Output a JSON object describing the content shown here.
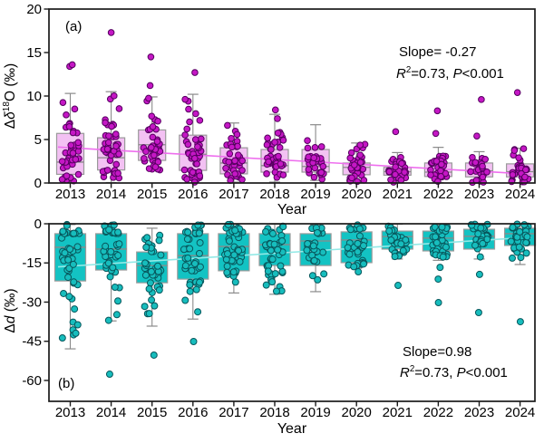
{
  "figure": {
    "description": "Two-panel box-and-scatter time series of isotope differences by year"
  },
  "chart_data": [
    {
      "panel": "a",
      "type": "box",
      "panel_label": "(a)",
      "xlabel": "Year",
      "ylabel_parts": [
        {
          "t": "Δ"
        },
        {
          "t": "δ",
          "style": "italic"
        },
        {
          "t": "18",
          "sup": true
        },
        {
          "t": "O (‰)"
        }
      ],
      "ylim": [
        0,
        20
      ],
      "yticks": [
        0,
        5,
        10,
        15,
        20
      ],
      "categories": [
        "2013",
        "2014",
        "2015",
        "2016",
        "2017",
        "2018",
        "2019",
        "2020",
        "2021",
        "2022",
        "2023",
        "2024"
      ],
      "trend": {
        "value_at_2013": 4.05,
        "slope_per_year": -0.27
      },
      "annotation_lines": [
        [
          {
            "t": "Slope= -0.27"
          }
        ],
        [
          {
            "t": "R",
            "style": "italic"
          },
          {
            "t": "2",
            "sup": true
          },
          {
            "t": "=0.73, "
          },
          {
            "t": "P",
            "style": "italic"
          },
          {
            "t": "<0.001"
          }
        ]
      ],
      "colors": {
        "box_fill": "#f3c1f3",
        "box_stroke": "#9a9a9a",
        "point_fill": "#c517c5",
        "point_stroke": "#55005f",
        "trend": "#ee6fee",
        "frame": "#1a1a1a"
      },
      "boxes": [
        {
          "year": "2013",
          "whisker_low": 0.1,
          "q1": 1.0,
          "median": 2.4,
          "q3": 5.7,
          "whisker_high": 10.3,
          "outliers": [
            13.4,
            13.6
          ],
          "n_points": 44
        },
        {
          "year": "2014",
          "whisker_low": 0.05,
          "q1": 1.5,
          "median": 2.9,
          "q3": 5.2,
          "whisker_high": 10.5,
          "outliers": [
            17.3
          ],
          "n_points": 48
        },
        {
          "year": "2015",
          "whisker_low": 1.5,
          "q1": 2.6,
          "median": 4.4,
          "q3": 6.1,
          "whisker_high": 9.9,
          "outliers": [
            11.2,
            14.5
          ],
          "n_points": 40
        },
        {
          "year": "2016",
          "whisker_low": 0.05,
          "q1": 1.45,
          "median": 3.3,
          "q3": 5.5,
          "whisker_high": 10.2,
          "outliers": [
            12.7
          ],
          "n_points": 44
        },
        {
          "year": "2017",
          "whisker_low": 0.1,
          "q1": 1.05,
          "median": 2.3,
          "q3": 4.05,
          "whisker_high": 6.9,
          "outliers": [],
          "n_points": 40
        },
        {
          "year": "2018",
          "whisker_low": 0.1,
          "q1": 1.25,
          "median": 2.0,
          "q3": 3.85,
          "whisker_high": 7.9,
          "outliers": [
            8.4
          ],
          "n_points": 42
        },
        {
          "year": "2019",
          "whisker_low": 0.3,
          "q1": 1.25,
          "median": 1.9,
          "q3": 3.85,
          "whisker_high": 6.7,
          "outliers": [],
          "n_points": 28
        },
        {
          "year": "2020",
          "whisker_low": 0.05,
          "q1": 0.95,
          "median": 1.8,
          "q3": 2.3,
          "whisker_high": 4.6,
          "outliers": [],
          "n_points": 32
        },
        {
          "year": "2021",
          "whisker_low": 0.05,
          "q1": 0.9,
          "median": 1.3,
          "q3": 1.8,
          "whisker_high": 3.5,
          "outliers": [
            5.9
          ],
          "n_points": 30
        },
        {
          "year": "2022",
          "whisker_low": 0.05,
          "q1": 0.75,
          "median": 1.25,
          "q3": 2.3,
          "whisker_high": 4.1,
          "outliers": [
            5.7,
            8.3
          ],
          "n_points": 34
        },
        {
          "year": "2023",
          "whisker_low": 0.05,
          "q1": 0.7,
          "median": 1.4,
          "q3": 2.3,
          "whisker_high": 3.6,
          "outliers": [
            5.4,
            9.6
          ],
          "n_points": 32
        },
        {
          "year": "2024",
          "whisker_low": 0.05,
          "q1": 0.7,
          "median": 1.3,
          "q3": 2.2,
          "whisker_high": 4.0,
          "outliers": [
            10.4
          ],
          "n_points": 32
        }
      ]
    },
    {
      "panel": "b",
      "type": "box",
      "panel_label": "(b)",
      "xlabel": "Year",
      "ylabel_parts": [
        {
          "t": "Δ"
        },
        {
          "t": "d",
          "style": "italic"
        },
        {
          "t": " (‰)"
        }
      ],
      "ylim": [
        -68,
        0
      ],
      "yticks": [
        0,
        -15,
        -30,
        -45,
        -60
      ],
      "categories": [
        "2013",
        "2014",
        "2015",
        "2016",
        "2017",
        "2018",
        "2019",
        "2020",
        "2021",
        "2022",
        "2023",
        "2024"
      ],
      "trend": {
        "value_at_2013": -16.2,
        "slope_per_year": 0.98
      },
      "annotation_lines": [
        [
          {
            "t": "Slope=0.98"
          }
        ],
        [
          {
            "t": "R",
            "style": "italic"
          },
          {
            "t": "2",
            "sup": true
          },
          {
            "t": "=0.73, "
          },
          {
            "t": "P",
            "style": "italic"
          },
          {
            "t": "<0.001"
          }
        ]
      ],
      "colors": {
        "box_fill": "#13c3c3",
        "box_stroke": "#9a9a9a",
        "point_fill": "#17bdbd",
        "point_stroke": "#07575c",
        "trend": "#93e9e6",
        "frame": "#1a1a1a"
      },
      "boxes": [
        {
          "year": "2013",
          "whisker_low": -47.9,
          "q1": -21.9,
          "median": -9.0,
          "q3": -3.8,
          "whisker_high": -0.3,
          "outliers": [],
          "n_points": 46
        },
        {
          "year": "2014",
          "whisker_low": -37.2,
          "q1": -17.7,
          "median": -9.7,
          "q3": -3.8,
          "whisker_high": -0.3,
          "outliers": [
            -57.6
          ],
          "n_points": 46
        },
        {
          "year": "2015",
          "whisker_low": -39.2,
          "q1": -22.6,
          "median": -16.0,
          "q3": -10.8,
          "whisker_high": -1.7,
          "outliers": [
            -50.3
          ],
          "n_points": 42
        },
        {
          "year": "2016",
          "whisker_low": -36.5,
          "q1": -21.2,
          "median": -12.2,
          "q3": -3.8,
          "whisker_high": -0.2,
          "outliers": [
            -45.1
          ],
          "n_points": 44
        },
        {
          "year": "2017",
          "whisker_low": -26.5,
          "q1": -18.0,
          "median": -8.7,
          "q3": -3.8,
          "whisker_high": -0.2,
          "outliers": [],
          "n_points": 42
        },
        {
          "year": "2018",
          "whisker_low": -27.0,
          "q1": -16.0,
          "median": -8.0,
          "q3": -3.8,
          "whisker_high": -0.2,
          "outliers": [],
          "n_points": 42
        },
        {
          "year": "2019",
          "whisker_low": -26.0,
          "q1": -16.0,
          "median": -6.6,
          "q3": -3.8,
          "whisker_high": -0.3,
          "outliers": [],
          "n_points": 26
        },
        {
          "year": "2020",
          "whisker_low": -17.0,
          "q1": -14.9,
          "median": -6.2,
          "q3": -3.1,
          "whisker_high": -0.2,
          "outliers": [
            -18.4
          ],
          "n_points": 34
        },
        {
          "year": "2021",
          "whisker_low": -13.5,
          "q1": -9.7,
          "median": -4.9,
          "q3": -2.8,
          "whisker_high": -0.15,
          "outliers": [
            -23.6
          ],
          "n_points": 32
        },
        {
          "year": "2022",
          "whisker_low": -14.0,
          "q1": -10.4,
          "median": -5.5,
          "q3": -2.8,
          "whisker_high": -0.2,
          "outliers": [
            -16.7,
            -21.2,
            -30.2
          ],
          "n_points": 36
        },
        {
          "year": "2023",
          "whisker_low": -13.5,
          "q1": -9.7,
          "median": -4.8,
          "q3": -2.1,
          "whisker_high": -0.2,
          "outliers": [
            -19.4,
            -34.0
          ],
          "n_points": 34
        },
        {
          "year": "2024",
          "whisker_low": -15.6,
          "q1": -8.3,
          "median": -3.8,
          "q3": -1.7,
          "whisker_high": -0.1,
          "outliers": [
            -37.5
          ],
          "n_points": 34
        }
      ]
    }
  ]
}
